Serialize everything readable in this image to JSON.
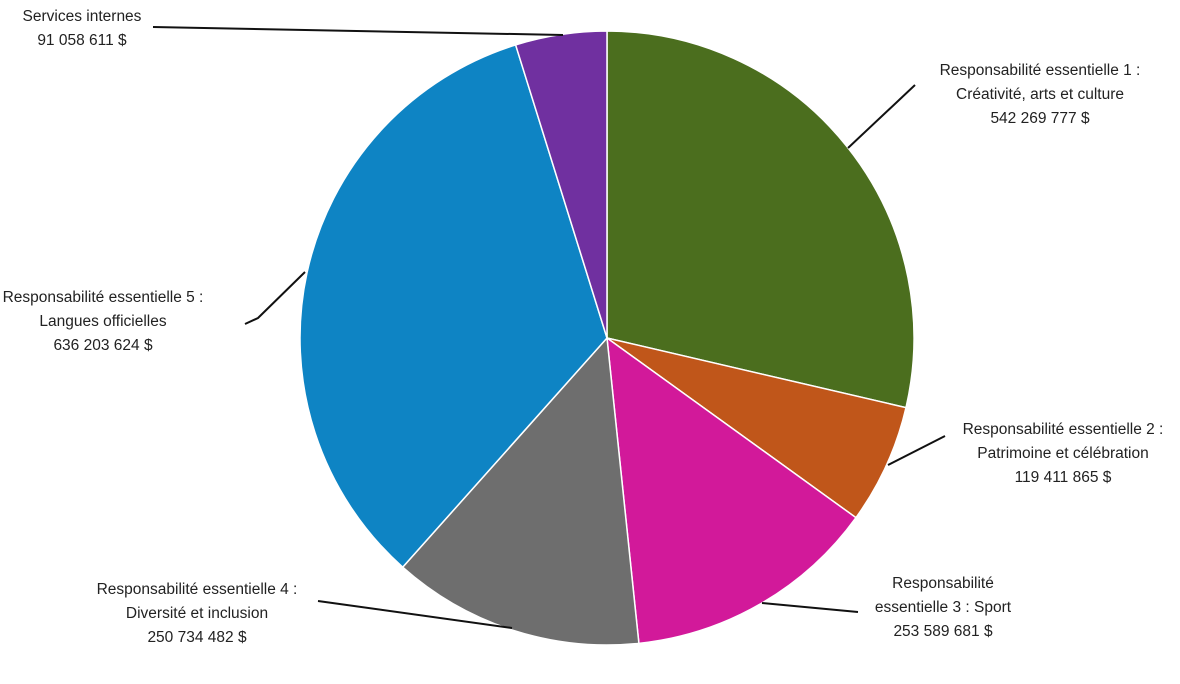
{
  "chart_data": {
    "type": "pie",
    "categories": [
      "Responsabilité essentielle 1 : Créativité, arts et culture",
      "Responsabilité essentielle 2 : Patrimoine et célébration",
      "Responsabilité essentielle 3 : Sport",
      "Responsabilité essentielle 4 : Diversité et inclusion",
      "Responsabilité essentielle 5 : Langues officielles",
      "Services internes"
    ],
    "values": [
      542269777,
      119411865,
      253589681,
      250734482,
      636203624,
      91058611
    ],
    "value_labels": [
      "542 269 777 $",
      "119 411 865 $",
      "253 589 681 $",
      "250 734 482 $",
      "636 203 624 $",
      "91 058 611 $"
    ],
    "colors": [
      "#4b6e1e",
      "#c0561a",
      "#d2199a",
      "#6e6e6e",
      "#0e84c4",
      "#7030a0"
    ]
  }
}
